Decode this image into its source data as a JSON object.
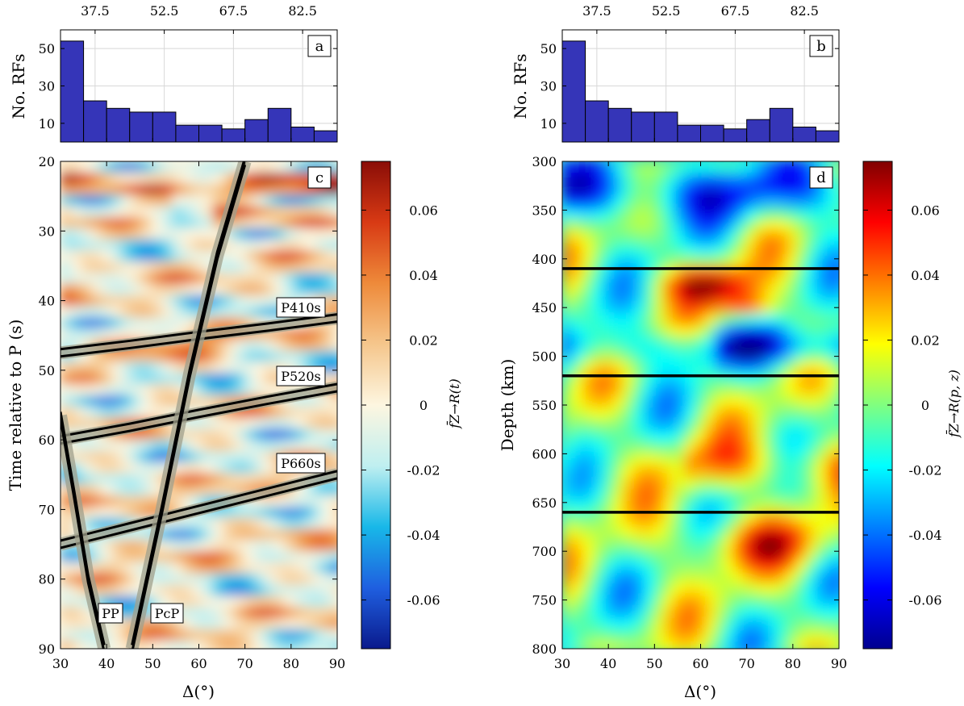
{
  "figure": {
    "colorbar_ticks": [
      "0.06",
      "0.04",
      "0.02",
      "0",
      "-0.02",
      "-0.04",
      "-0.06"
    ],
    "colorbar_c_label": "f̄Z→R(t)",
    "colorbar_d_label": "f̄Z→R(p, z)",
    "colormap": [
      "#00008f",
      "#0000ff",
      "#0080ff",
      "#00ffff",
      "#80ff80",
      "#ffff00",
      "#ff8000",
      "#ff0000",
      "#800000"
    ],
    "diverging_map": [
      "#0a1a8c",
      "#1f5fe0",
      "#18b8e8",
      "#bfeff0",
      "#fdf6e0",
      "#f5c68c",
      "#ee8a3a",
      "#d83a14",
      "#8a0d07"
    ]
  },
  "chart_data": [
    {
      "type": "bar",
      "panel": "a",
      "label": "a",
      "ylabel": "No. RFs",
      "xlabel": "",
      "top_ticks": [
        "37.5",
        "52.5",
        "67.5",
        "82.5"
      ],
      "top_tick_values": [
        37.5,
        52.5,
        67.5,
        82.5
      ],
      "xlim": [
        30,
        90
      ],
      "ylim": [
        0,
        60
      ],
      "yticks": [
        10,
        30,
        50
      ],
      "bin_edges": [
        30,
        35,
        40,
        45,
        50,
        55,
        60,
        65,
        70,
        75,
        80,
        85,
        90
      ],
      "values": [
        54,
        22,
        18,
        16,
        16,
        9,
        9,
        7,
        12,
        18,
        8,
        6
      ],
      "bar_color": "#3535b8",
      "grid": true
    },
    {
      "type": "bar",
      "panel": "b",
      "label": "b",
      "ylabel": "No. RFs",
      "xlabel": "",
      "top_ticks": [
        "37.5",
        "52.5",
        "67.5",
        "82.5"
      ],
      "top_tick_values": [
        37.5,
        52.5,
        67.5,
        82.5
      ],
      "xlim": [
        30,
        90
      ],
      "ylim": [
        0,
        60
      ],
      "yticks": [
        10,
        30,
        50
      ],
      "bin_edges": [
        30,
        35,
        40,
        45,
        50,
        55,
        60,
        65,
        70,
        75,
        80,
        85,
        90
      ],
      "values": [
        54,
        22,
        18,
        16,
        16,
        9,
        9,
        7,
        12,
        18,
        8,
        6
      ],
      "bar_color": "#3535b8",
      "grid": true
    },
    {
      "type": "heatmap",
      "panel": "c",
      "label": "c",
      "xlabel": "Δ(°)",
      "ylabel": "Time relative to P (s)",
      "xlim": [
        30,
        90
      ],
      "ylim": [
        90,
        20
      ],
      "xticks": [
        30,
        40,
        50,
        60,
        70,
        80,
        90
      ],
      "yticks": [
        20,
        30,
        40,
        50,
        60,
        70,
        80,
        90
      ],
      "zlim": [
        -0.075,
        0.075
      ],
      "phase_curves": [
        {
          "name": "P410s",
          "label": "P410s",
          "x": [
            30,
            45,
            60,
            75,
            90
          ],
          "y": [
            47.5,
            46.3,
            45.0,
            43.8,
            42.5
          ]
        },
        {
          "name": "P520s",
          "label": "P520s",
          "x": [
            30,
            45,
            60,
            75,
            90
          ],
          "y": [
            60.0,
            58.2,
            56.2,
            54.3,
            52.5
          ]
        },
        {
          "name": "P660s",
          "label": "P660s",
          "x": [
            30,
            45,
            60,
            75,
            90
          ],
          "y": [
            75.0,
            72.5,
            70.0,
            67.5,
            65.0
          ]
        },
        {
          "name": "PP",
          "label": "PP",
          "x": [
            30,
            33,
            36,
            39.5
          ],
          "y": [
            56.5,
            68.0,
            80.0,
            90.0
          ]
        },
        {
          "name": "PcP",
          "label": "PcP",
          "x": [
            45.5,
            52,
            58,
            64,
            70
          ],
          "y": [
            90.0,
            70.0,
            50.5,
            33.5,
            20.0
          ]
        }
      ]
    },
    {
      "type": "heatmap",
      "panel": "d",
      "label": "d",
      "xlabel": "Δ(°)",
      "ylabel": "Depth (km)",
      "xlim": [
        30,
        90
      ],
      "ylim": [
        800,
        300
      ],
      "xticks": [
        30,
        40,
        50,
        60,
        70,
        80,
        90
      ],
      "yticks": [
        300,
        350,
        400,
        450,
        500,
        550,
        600,
        650,
        700,
        750,
        800
      ],
      "zlim": [
        -0.075,
        0.075
      ],
      "horizontal_lines": [
        410,
        520,
        660
      ]
    }
  ]
}
